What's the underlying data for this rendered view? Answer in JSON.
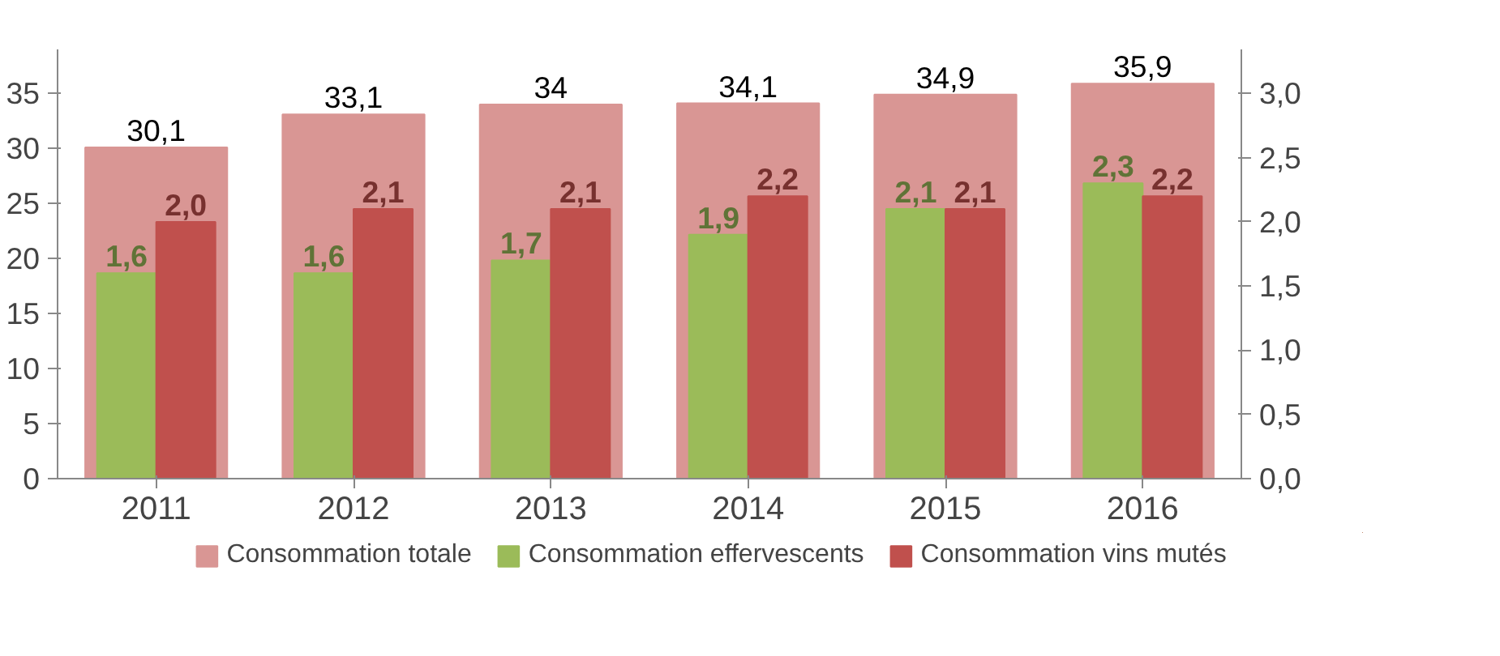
{
  "chart_data": {
    "type": "bar",
    "categories": [
      "2011",
      "2012",
      "2013",
      "2014",
      "2015",
      "2016"
    ],
    "series": [
      {
        "name": "Consommation totale",
        "color": "#d99694",
        "values": [
          30.1,
          33.1,
          34,
          34.1,
          34.9,
          35.9
        ],
        "value_labels": [
          "30,1",
          "33,1",
          "34",
          "34,1",
          "34,9",
          "35,9"
        ]
      },
      {
        "name": "Consommation effervescents",
        "color": "#9bbb59",
        "axis": "y2",
        "values": [
          1.6,
          1.6,
          1.7,
          1.9,
          2.1,
          2.3
        ],
        "value_labels": [
          "1,6",
          "1,6",
          "1,7",
          "1,9",
          "2,1",
          "2,3"
        ]
      },
      {
        "name": "Consommation vins mutés",
        "color": "#c0504d",
        "axis": "y2",
        "values": [
          2.0,
          2.1,
          2.1,
          2.2,
          2.1,
          2.2
        ],
        "value_labels": [
          "2,0",
          "2,1",
          "2,1",
          "2,2",
          "2,1",
          "2,2"
        ]
      }
    ],
    "ylim": [
      0,
      39
    ],
    "yticks": [
      0,
      5,
      10,
      15,
      20,
      25,
      30,
      35
    ],
    "y2lim": [
      0,
      3.3429
    ],
    "y2ticks": [
      {
        "value": 0,
        "label": "0,0"
      },
      {
        "value": 0.5,
        "label": "0,5"
      },
      {
        "value": 1,
        "label": "1,0"
      },
      {
        "value": 1.5,
        "label": "1,5"
      },
      {
        "value": 2,
        "label": "2,0"
      },
      {
        "value": 2.5,
        "label": "2,5"
      },
      {
        "value": 3,
        "label": "3,0"
      }
    ],
    "grid": false,
    "legend": "bottom"
  }
}
